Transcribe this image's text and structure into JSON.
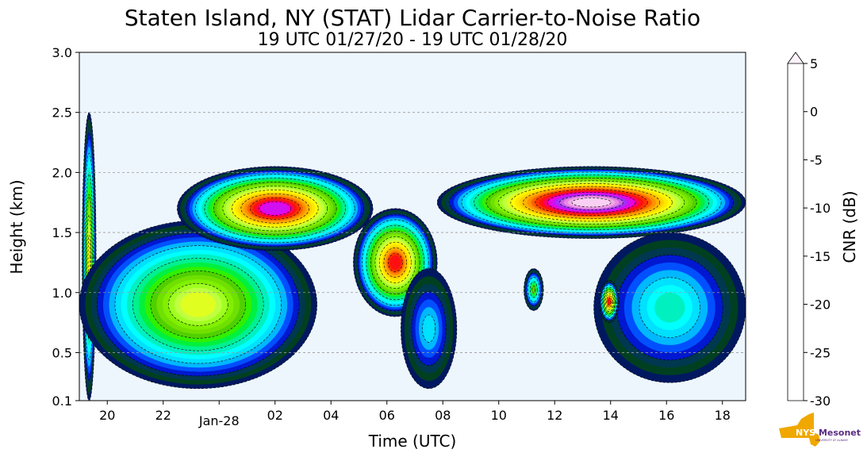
{
  "chart_data": {
    "type": "heatmap",
    "title": "Staten Island, NY (STAT) Lidar Carrier-to-Noise Ratio",
    "subtitle": "19 UTC 01/27/20 - 19 UTC 01/28/20",
    "xlabel": "Time (UTC)",
    "ylabel": "Height (km)",
    "colorbar_label": "CNR (dB)",
    "x_unit": "hours since 19 UTC 01/27/20",
    "xlim": [
      0,
      23.83
    ],
    "ylim": [
      0.1,
      3.0
    ],
    "x_ticks": [
      {
        "v": 1,
        "label": "20"
      },
      {
        "v": 3,
        "label": "22"
      },
      {
        "v": 5,
        "label": "Jan-28"
      },
      {
        "v": 7,
        "label": "02"
      },
      {
        "v": 9,
        "label": "04"
      },
      {
        "v": 11,
        "label": "06"
      },
      {
        "v": 13,
        "label": "08"
      },
      {
        "v": 15,
        "label": "10"
      },
      {
        "v": 17,
        "label": "12"
      },
      {
        "v": 19,
        "label": "14"
      },
      {
        "v": 21,
        "label": "16"
      },
      {
        "v": 23,
        "label": "18"
      }
    ],
    "y_ticks": [
      {
        "v": 0.1,
        "label": "0.1"
      },
      {
        "v": 0.5,
        "label": "0.5"
      },
      {
        "v": 1.0,
        "label": "1.0"
      },
      {
        "v": 1.5,
        "label": "1.5"
      },
      {
        "v": 2.0,
        "label": "2.0"
      },
      {
        "v": 2.5,
        "label": "2.5"
      },
      {
        "v": 3.0,
        "label": "3.0"
      }
    ],
    "grid_y": [
      0.5,
      1.0,
      1.5,
      2.0,
      2.5
    ],
    "colorbar": {
      "range": [
        -30,
        5
      ],
      "ticks": [
        {
          "v": 5,
          "label": "5"
        },
        {
          "v": 0,
          "label": "0"
        },
        {
          "v": -5,
          "label": "-5"
        },
        {
          "v": -10,
          "label": "-10"
        },
        {
          "v": -15,
          "label": "-15"
        },
        {
          "v": -20,
          "label": "-20"
        },
        {
          "v": -25,
          "label": "-25"
        },
        {
          "v": -30,
          "label": "-30"
        }
      ],
      "colors_top_to_bottom": [
        "#fdeefb",
        "#f9d0f3",
        "#f2aae9",
        "#ea88e0",
        "#c860ec",
        "#a030f8",
        "#d010f0",
        "#f000e0",
        "#ff0060",
        "#ff1010",
        "#ff3000",
        "#ff6000",
        "#ff9000",
        "#ffb000",
        "#ffd000",
        "#ffe800",
        "#ffff00",
        "#e0ff20",
        "#c0ff40",
        "#a0ff20",
        "#80f000",
        "#70e000",
        "#50d000",
        "#30f000",
        "#00f040",
        "#00f090",
        "#00f0c0",
        "#00ffff",
        "#00e0ff",
        "#00b8ff",
        "#0050ff",
        "#0018d0",
        "#003850",
        "#004020",
        "#001860"
      ]
    },
    "features": [
      {
        "t": [
          0.1,
          0.6
        ],
        "h": [
          0.1,
          2.5
        ],
        "peak": -12
      },
      {
        "t": [
          0,
          8.5
        ],
        "h": [
          0.2,
          1.6
        ],
        "peak": -13
      },
      {
        "t": [
          3.5,
          10.5
        ],
        "h": [
          1.35,
          2.05
        ],
        "peak": -2
      },
      {
        "t": [
          9.8,
          12.8
        ],
        "h": [
          0.8,
          1.7
        ],
        "peak": -5
      },
      {
        "t": [
          11.5,
          13.5
        ],
        "h": [
          0.2,
          1.2
        ],
        "peak": -24
      },
      {
        "t": [
          12.8,
          23.83
        ],
        "h": [
          1.45,
          2.05
        ],
        "peak": 3
      },
      {
        "t": [
          15.9,
          16.6
        ],
        "h": [
          0.85,
          1.2
        ],
        "peak": -18
      },
      {
        "t": [
          18.4,
          23.83
        ],
        "h": [
          0.25,
          1.5
        ],
        "peak": -22
      },
      {
        "t": [
          18.6,
          19.3
        ],
        "h": [
          0.75,
          1.1
        ],
        "peak": -5
      }
    ]
  },
  "logo": {
    "text": "NYS Mesonet",
    "sub": "UNIVERSITY AT ALBANY"
  }
}
